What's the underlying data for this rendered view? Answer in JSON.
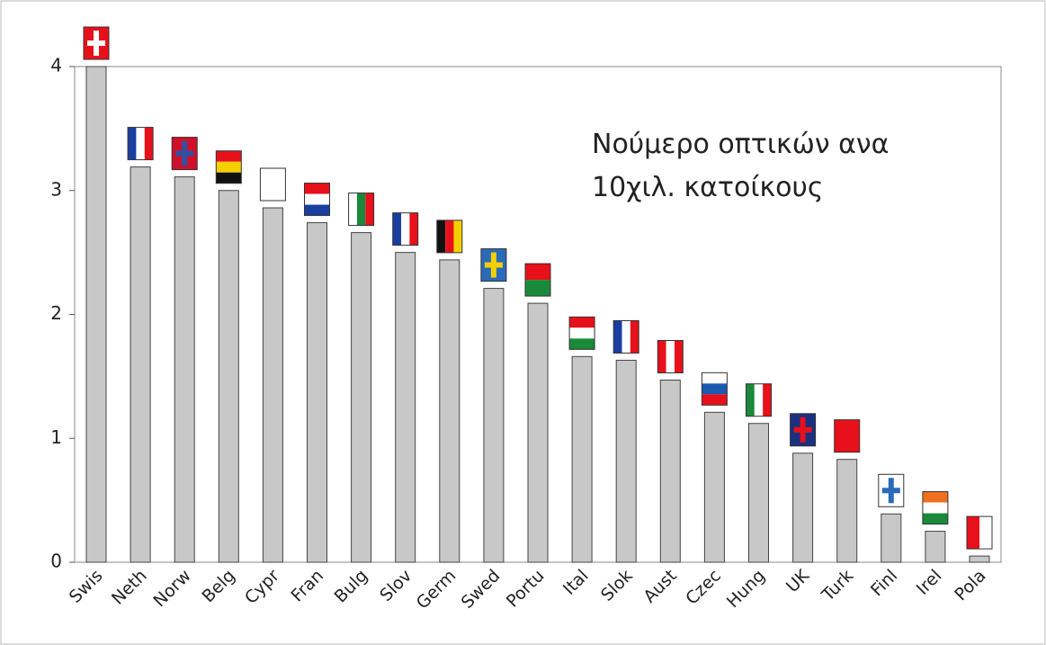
{
  "chart_data": {
    "type": "bar",
    "annotation": [
      "Νούμερο οπτικών ανα",
      "10χιλ. κατοίκους"
    ],
    "categories": [
      "Swis",
      "Neth",
      "Norw",
      "Belg",
      "Cypr",
      "Fran",
      "Bulg",
      "Slov",
      "Germ",
      "Swed",
      "Portu",
      "Ital",
      "Slok",
      "Aust",
      "Czec",
      "Hung",
      "UK",
      "Turk",
      "Finl",
      "Irel",
      "Pola"
    ],
    "values": [
      4.0,
      3.19,
      3.11,
      3.0,
      2.86,
      2.74,
      2.66,
      2.5,
      2.44,
      2.21,
      2.09,
      1.66,
      1.63,
      1.47,
      1.21,
      1.12,
      0.88,
      0.83,
      0.39,
      0.25,
      0.05
    ],
    "color": "#c8c8c8",
    "ylim": [
      0,
      4
    ],
    "yticks": [
      0,
      1,
      2,
      3,
      4
    ],
    "grid": false
  }
}
